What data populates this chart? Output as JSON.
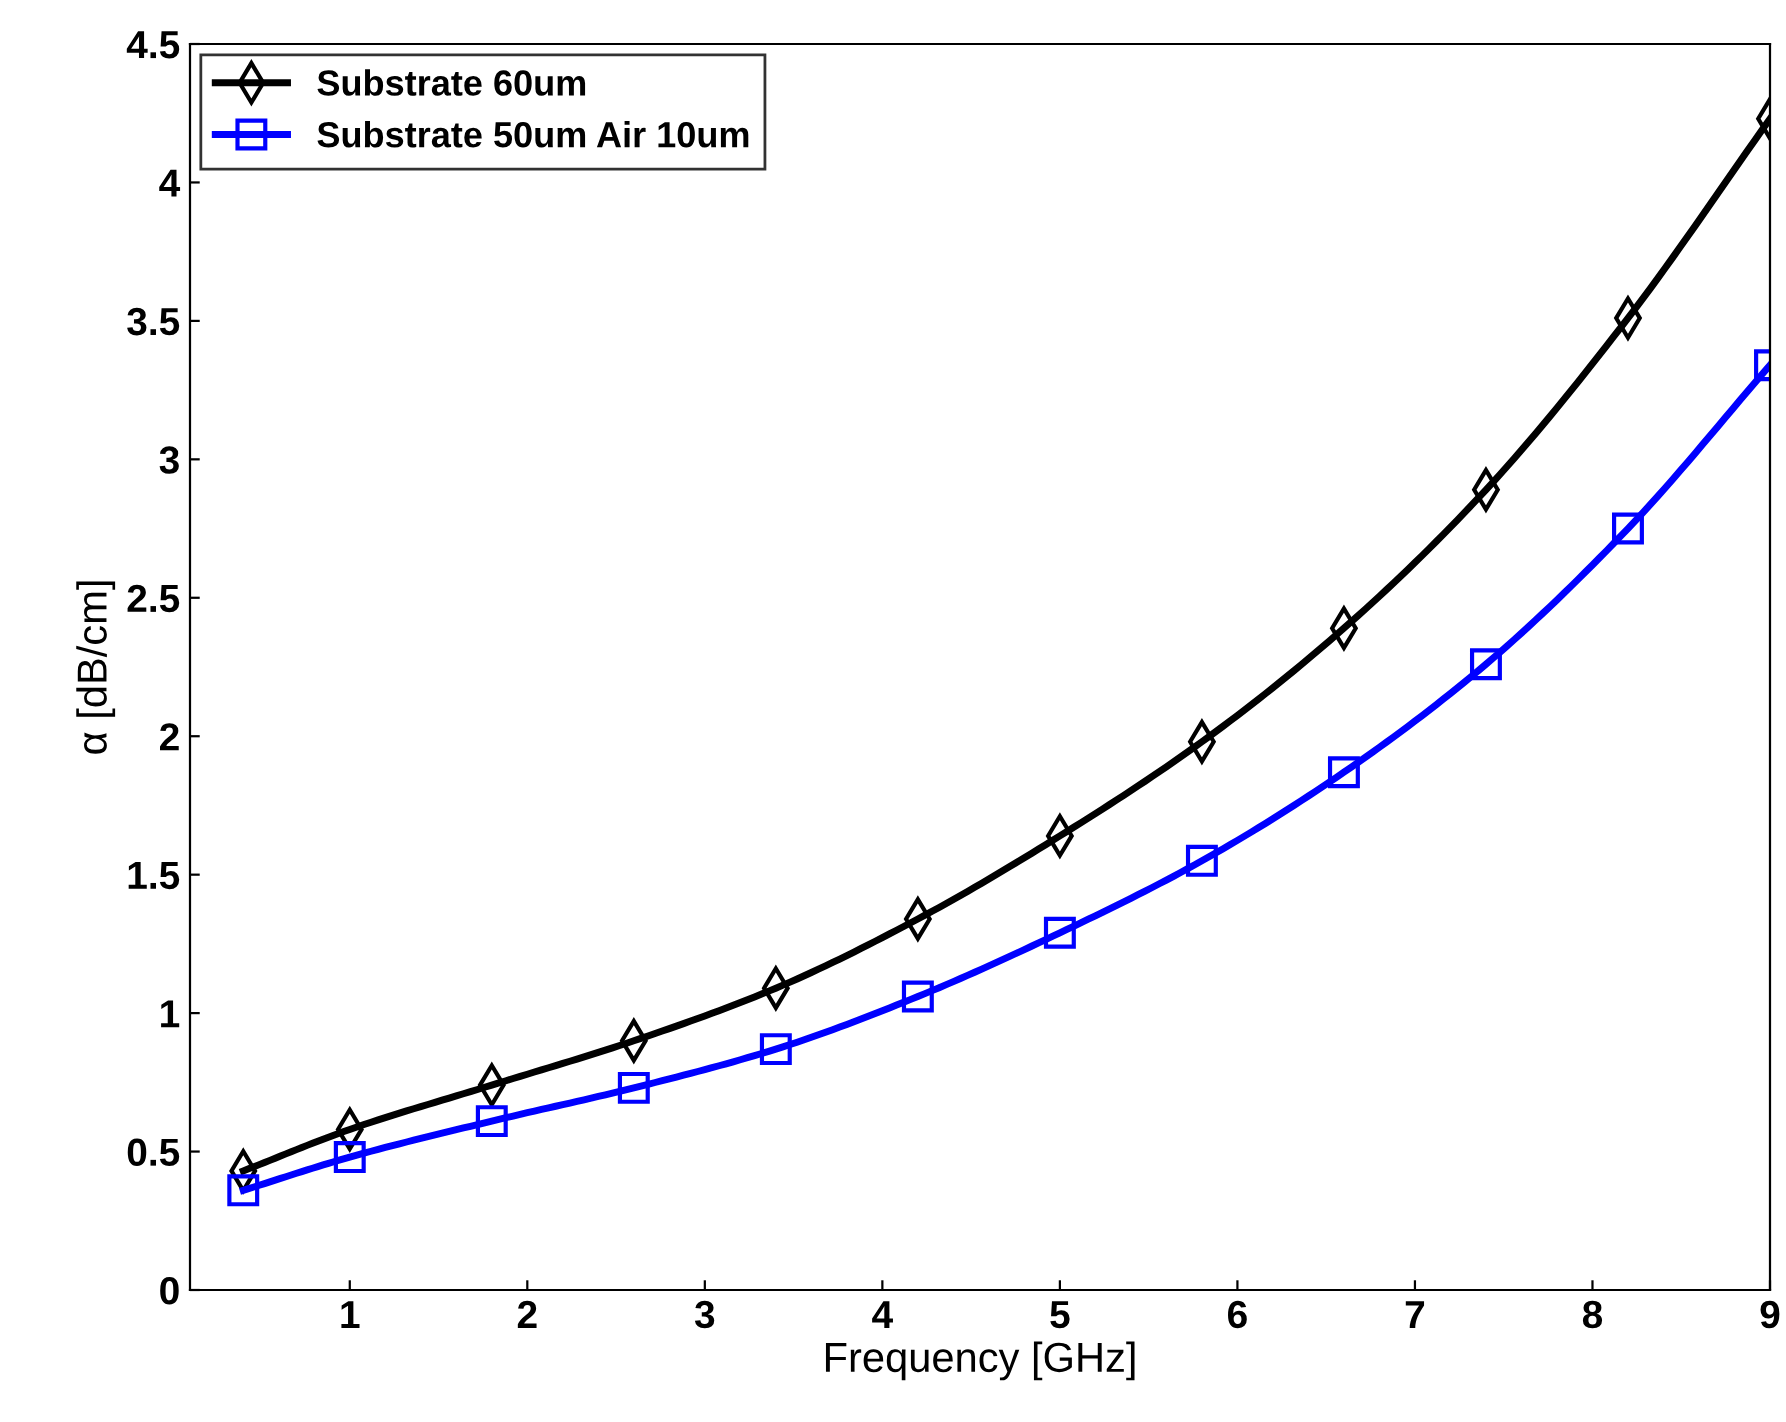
{
  "chart_data": {
    "type": "line",
    "xlabel": "Frequency [GHz]",
    "ylabel": "α [dB/cm]",
    "xlim": [
      0.1,
      9
    ],
    "xticks": [
      1,
      2,
      3,
      4,
      5,
      6,
      7,
      8,
      9
    ],
    "ylim": [
      0,
      4.5
    ],
    "yticks": [
      0,
      0.5,
      1,
      1.5,
      2,
      2.5,
      3,
      3.5,
      4,
      4.5
    ],
    "grid": false,
    "legend": "top left",
    "series": [
      {
        "name": "Substrate 60um",
        "color": "#000000",
        "marker": "diamond",
        "x": [
          0.4,
          1,
          1.8,
          2.6,
          3.4,
          4.2,
          5,
          5.8,
          6.6,
          7.4,
          8.2,
          9
        ],
        "values": [
          0.43,
          0.58,
          0.74,
          0.9,
          1.09,
          1.34,
          1.64,
          1.98,
          2.39,
          2.89,
          3.51,
          4.23
        ]
      },
      {
        "name": "Substrate 50um Air 10um",
        "color": "#0000ff",
        "marker": "square",
        "x": [
          0.4,
          1,
          1.8,
          2.6,
          3.4,
          4.2,
          5,
          5.8,
          6.6,
          7.4,
          8.2,
          9
        ],
        "values": [
          0.36,
          0.48,
          0.61,
          0.73,
          0.87,
          1.06,
          1.29,
          1.55,
          1.87,
          2.26,
          2.75,
          3.34
        ]
      }
    ]
  }
}
